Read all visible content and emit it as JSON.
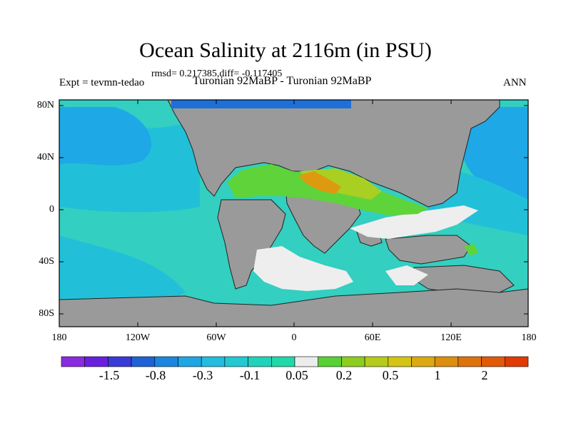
{
  "title": "Ocean Salinity at 2116m (in PSU)",
  "stats_line": "rmsd= 0.217385,diff= -0.117405",
  "left_label": "Expt = tevmn-tedao",
  "center_label": "Turonian  92MaBP - Turonian  92MaBP",
  "right_label": "ANN",
  "y_ticks": [
    "80N",
    "40N",
    "0",
    "40S",
    "80S"
  ],
  "x_ticks": [
    "180",
    "120W",
    "60W",
    "0",
    "60E",
    "120E",
    "180"
  ],
  "colorbar": {
    "colors": [
      "#8a2be2",
      "#6a1fe0",
      "#3a3ad8",
      "#1f62d6",
      "#1a86e0",
      "#1ea6e4",
      "#22bce0",
      "#21c9d2",
      "#1fd3bb",
      "#20d8a8",
      "#ececec",
      "#57d133",
      "#8dcd1f",
      "#b5cc1a",
      "#d4c413",
      "#dcaa10",
      "#dd8e0c",
      "#de730a",
      "#e05a08",
      "#e03a05"
    ],
    "labels": [
      "-1.5",
      "-0.8",
      "-0.3",
      "-0.1",
      "0.05",
      "0.2",
      "0.5",
      "1",
      "2"
    ]
  },
  "map_colors": {
    "land": "#9a9a9a",
    "ocean_background": "#33cfc0",
    "ocean_mid": "#22c0d8",
    "ocean_blue": "#1ea8e6",
    "north_strip": "#1f6fd8",
    "white_zone": "#eeeeee",
    "green_zone": "#5ed43a",
    "yellow_green": "#a8cf22",
    "orange_zone": "#dd9a10"
  }
}
